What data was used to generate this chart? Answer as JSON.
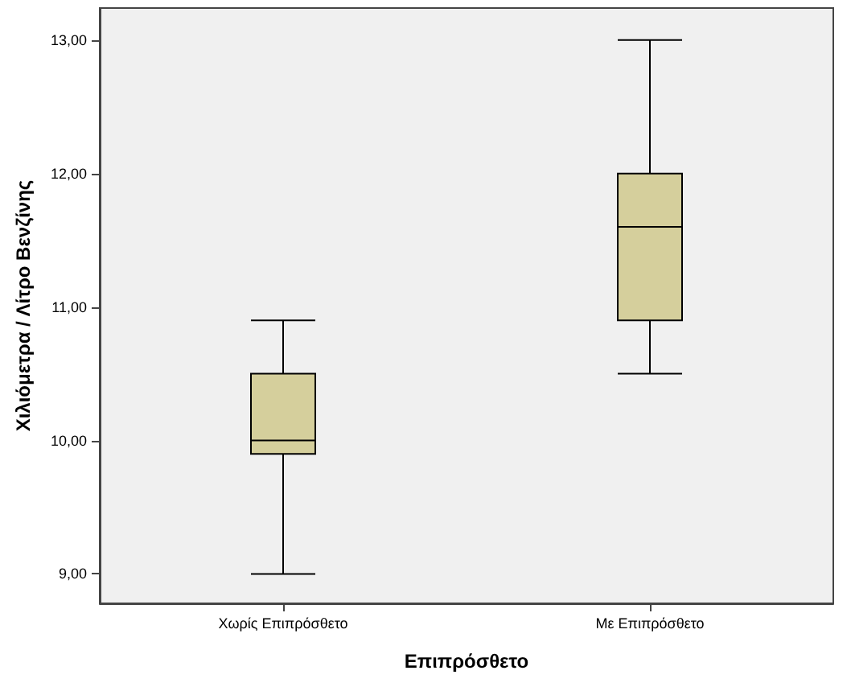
{
  "chart_data": {
    "type": "box",
    "xlabel": "Επιπρόσθετο",
    "ylabel": "Χιλιόμετρα / Λίτρο Βενζίνης",
    "categories": [
      "Χωρίς Επιπρόσθετο",
      "Με Επιπρόσθετο"
    ],
    "boxes": [
      {
        "low": 9.0,
        "q1": 9.9,
        "median": 10.0,
        "q3": 10.5,
        "high": 10.9
      },
      {
        "low": 10.5,
        "q1": 10.9,
        "median": 11.6,
        "q3": 12.0,
        "high": 13.0
      }
    ],
    "color": "#d5cf9c",
    "ylim": [
      8.78,
      13.24
    ],
    "yticks": [
      {
        "value": 9,
        "label": "9,00"
      },
      {
        "value": 10,
        "label": "10,00"
      },
      {
        "value": 11,
        "label": "11,00"
      },
      {
        "value": 12,
        "label": "12,00"
      },
      {
        "value": 13,
        "label": "13,00"
      }
    ],
    "grid": false
  }
}
